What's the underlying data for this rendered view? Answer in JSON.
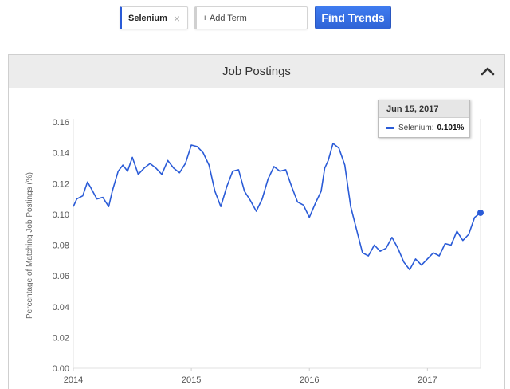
{
  "search": {
    "term": "Selenium",
    "close_glyph": "×",
    "add_placeholder": "+ Add Term",
    "find_label": "Find Trends"
  },
  "panel": {
    "title": "Job Postings"
  },
  "tooltip": {
    "date": "Jun 15, 2017",
    "series": "Selenium",
    "value": "0.101%"
  },
  "colors": {
    "line": "#2a5bd7",
    "axis": "#e2e2e2"
  },
  "chart_data": {
    "type": "line",
    "title": "",
    "xlabel": "",
    "ylabel": "Percentage of Matching Job Postings (%)",
    "ylim": [
      0,
      0.16
    ],
    "yticks": [
      "0.00",
      "0.02",
      "0.04",
      "0.06",
      "0.08",
      "0.10",
      "0.12",
      "0.14",
      "0.16"
    ],
    "xticks": [
      "2014",
      "2015",
      "2016",
      "2017"
    ],
    "grid": false,
    "series": [
      {
        "name": "Selenium",
        "x": [
          2014.0,
          2014.03,
          2014.08,
          2014.12,
          2014.15,
          2014.2,
          2014.25,
          2014.3,
          2014.33,
          2014.38,
          2014.42,
          2014.46,
          2014.5,
          2014.55,
          2014.6,
          2014.65,
          2014.7,
          2014.75,
          2014.8,
          2014.85,
          2014.9,
          2014.95,
          2015.0,
          2015.05,
          2015.1,
          2015.15,
          2015.2,
          2015.25,
          2015.3,
          2015.35,
          2015.4,
          2015.45,
          2015.5,
          2015.55,
          2015.6,
          2015.65,
          2015.7,
          2015.75,
          2015.8,
          2015.85,
          2015.9,
          2015.95,
          2016.0,
          2016.05,
          2016.1,
          2016.13,
          2016.16,
          2016.2,
          2016.25,
          2016.3,
          2016.35,
          2016.4,
          2016.45,
          2016.5,
          2016.55,
          2016.6,
          2016.65,
          2016.7,
          2016.75,
          2016.8,
          2016.85,
          2016.9,
          2016.95,
          2017.0,
          2017.05,
          2017.1,
          2017.15,
          2017.2,
          2017.25,
          2017.3,
          2017.35,
          2017.4,
          2017.45
        ],
        "values": [
          0.105,
          0.11,
          0.112,
          0.121,
          0.117,
          0.11,
          0.111,
          0.105,
          0.115,
          0.128,
          0.132,
          0.128,
          0.137,
          0.126,
          0.13,
          0.133,
          0.13,
          0.126,
          0.135,
          0.13,
          0.127,
          0.133,
          0.145,
          0.144,
          0.14,
          0.132,
          0.115,
          0.105,
          0.118,
          0.128,
          0.129,
          0.115,
          0.109,
          0.102,
          0.11,
          0.123,
          0.131,
          0.128,
          0.129,
          0.118,
          0.108,
          0.106,
          0.098,
          0.107,
          0.115,
          0.13,
          0.135,
          0.146,
          0.143,
          0.132,
          0.105,
          0.09,
          0.075,
          0.073,
          0.08,
          0.076,
          0.078,
          0.085,
          0.078,
          0.069,
          0.064,
          0.071,
          0.067,
          0.071,
          0.075,
          0.073,
          0.081,
          0.08,
          0.089,
          0.083,
          0.087,
          0.098,
          0.101
        ]
      }
    ]
  }
}
